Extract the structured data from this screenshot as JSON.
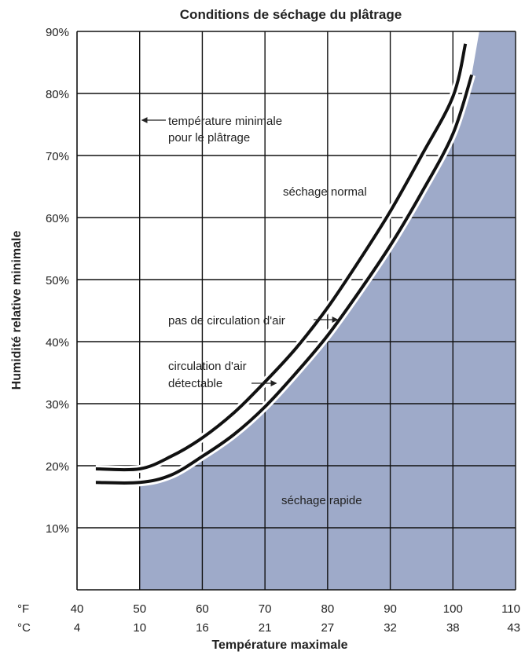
{
  "chart_data": {
    "type": "line",
    "title": "Conditions de séchage du plâtrage",
    "xlabel": "Température maximale",
    "ylabel": "Humidité relative minimale",
    "x_unit_rows": [
      {
        "unit": "°F",
        "ticks": [
          "40",
          "50",
          "60",
          "70",
          "80",
          "90",
          "100",
          "110"
        ]
      },
      {
        "unit": "°C",
        "ticks": [
          "4",
          "10",
          "16",
          "21",
          "27",
          "32",
          "38",
          "43"
        ]
      }
    ],
    "y_ticks": [
      "10%",
      "20%",
      "30%",
      "40%",
      "50%",
      "60%",
      "70%",
      "80%",
      "90%"
    ],
    "xlim": [
      40,
      110
    ],
    "ylim": [
      0,
      90
    ],
    "grid": true,
    "series": [
      {
        "name": "pas de circulation d'air",
        "x": [
          43,
          50,
          55,
          60,
          65,
          70,
          75,
          80,
          85,
          90,
          95,
          100,
          102
        ],
        "y": [
          19.5,
          19.5,
          21.5,
          24.5,
          28.5,
          33.5,
          39,
          45.5,
          53,
          61,
          70,
          79.5,
          88
        ]
      },
      {
        "name": "circulation d'air détectable",
        "x": [
          43,
          50,
          55,
          60,
          65,
          70,
          75,
          80,
          85,
          90,
          95,
          100,
          103
        ],
        "y": [
          17.3,
          17.3,
          18.5,
          21.5,
          25,
          29.5,
          35,
          41,
          48,
          55.5,
          64,
          73.5,
          83
        ]
      }
    ],
    "shaded_region": {
      "label": "séchage rapide",
      "x_from": 50,
      "color": "#9eaac9"
    },
    "annotations": [
      {
        "id": "temp_min",
        "lines": [
          "température minimale",
          "pour le plâtrage"
        ],
        "arrow_to_x": 50
      },
      {
        "id": "normal",
        "lines": [
          "séchage normal"
        ]
      },
      {
        "id": "no_air",
        "lines": [
          "pas de circulation d'air"
        ]
      },
      {
        "id": "air",
        "lines": [
          "circulation d'air",
          "détectable"
        ]
      },
      {
        "id": "rapid",
        "lines": [
          "séchage rapide"
        ]
      }
    ]
  }
}
